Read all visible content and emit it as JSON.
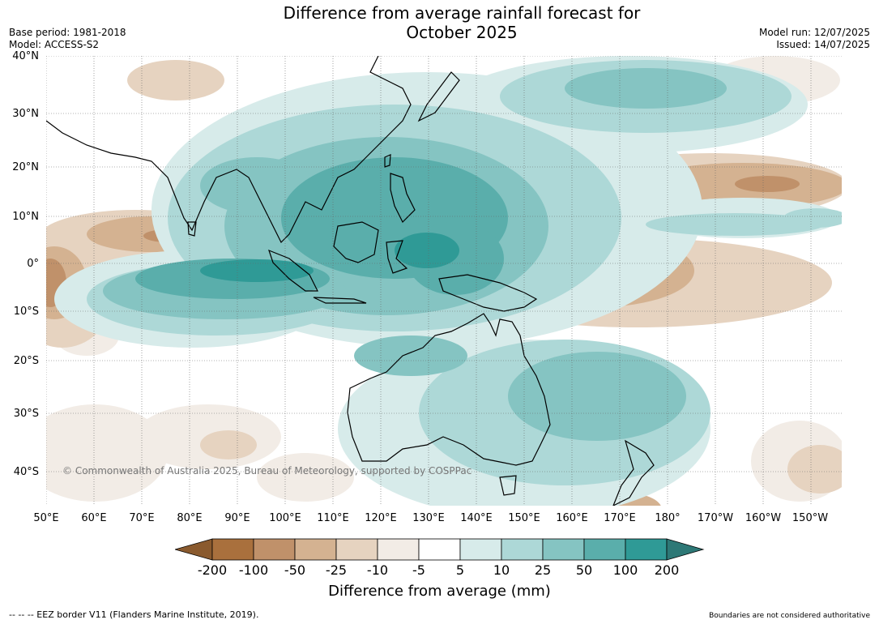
{
  "title_line1": "Difference from average rainfall forecast for",
  "title_line2": "October 2025",
  "base_period": "Base period: 1981-2018",
  "model": "Model: ACCESS-S2",
  "model_run": "Model run: 12/07/2025",
  "issued": "Issued: 14/07/2025",
  "copyright": "© Commonwealth of Australia 2025, Bureau of Meteorology, supported by COSPPac",
  "lat_labels": [
    "40°N",
    "30°N",
    "20°N",
    "10°N",
    "0°",
    "10°S",
    "20°S",
    "30°S",
    "40°S"
  ],
  "lon_labels": [
    "50°E",
    "60°E",
    "70°E",
    "80°E",
    "90°E",
    "100°E",
    "110°E",
    "120°E",
    "130°E",
    "140°E",
    "150°E",
    "160°E",
    "170°E",
    "180°",
    "170°W",
    "160°W",
    "150°W"
  ],
  "colorbar": {
    "title": "Difference from average (mm)",
    "tick_labels": [
      "-200",
      "-100",
      "-50",
      "-25",
      "-10",
      "-5",
      "5",
      "10",
      "25",
      "50",
      "100",
      "200"
    ],
    "colors": [
      "#8a5a2e",
      "#a9703d",
      "#c0916a",
      "#d4b291",
      "#e6d3c0",
      "#f2ece6",
      "#ffffff",
      "#d7ebea",
      "#add8d7",
      "#85c4c2",
      "#5aaeab",
      "#2f9a96",
      "#2d7876"
    ]
  },
  "footer_left": "--  --  -- EEZ border V11 (Flanders Marine Institute, 2019).",
  "footer_right": "Boundaries are not considered authoritative"
}
